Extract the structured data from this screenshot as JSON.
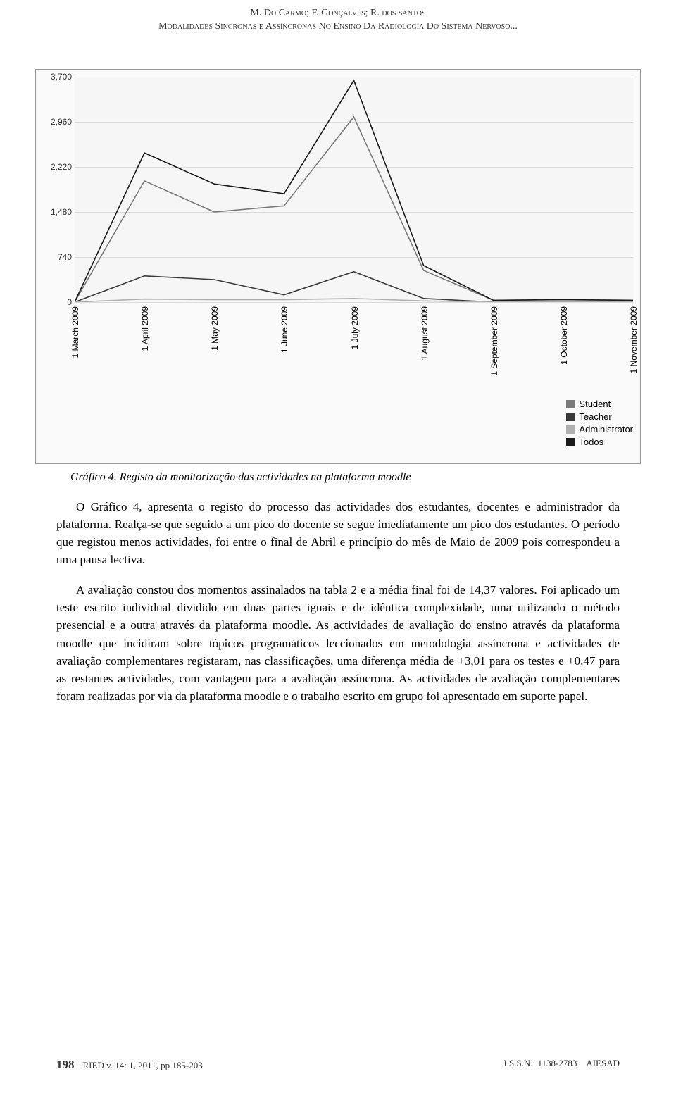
{
  "header": {
    "authors": "M. Do Carmo; F. Gonçalves; R. dos santos",
    "title": "Modalidades Síncronas e Assíncronas No Ensino Da Radiologia Do Sistema Nervoso..."
  },
  "chart": {
    "type": "line",
    "background_color": "#f6f6f6",
    "grid_color": "#dcdcdc",
    "line_width": 1.6,
    "ylim": [
      0,
      3700
    ],
    "yticks": [
      0,
      740,
      1480,
      2220,
      2960,
      3700
    ],
    "x_labels": [
      "1 March 2009",
      "1 April 2009",
      "1 May 2009",
      "1 June 2009",
      "1 July 2009",
      "1 August 2009",
      "1 September 2009",
      "1 October 2009",
      "1 November 2009"
    ],
    "series": [
      {
        "name": "Student",
        "color": "#7a7a7a",
        "values": [
          0,
          1990,
          1480,
          1580,
          3040,
          520,
          30,
          40,
          30
        ]
      },
      {
        "name": "Teacher",
        "color": "#3a3a3a",
        "values": [
          0,
          430,
          370,
          120,
          500,
          60,
          0,
          0,
          0
        ]
      },
      {
        "name": "Administrator",
        "color": "#b0b0b0",
        "values": [
          0,
          50,
          40,
          40,
          60,
          20,
          0,
          0,
          0
        ]
      },
      {
        "name": "Todos",
        "color": "#1a1a1a",
        "values": [
          0,
          2450,
          1940,
          1780,
          3640,
          600,
          30,
          40,
          30
        ]
      }
    ],
    "legend": {
      "items": [
        {
          "label": "Student",
          "color": "#7a7a7a"
        },
        {
          "label": "Teacher",
          "color": "#3a3a3a"
        },
        {
          "label": "Administrator",
          "color": "#b0b0b0"
        },
        {
          "label": "Todos",
          "color": "#1a1a1a"
        }
      ]
    }
  },
  "caption": "Gráfico 4. Registo da monitorização das actividades na plataforma moodle",
  "paragraphs": {
    "p1": "O Gráfico 4, apresenta o registo do processo das actividades dos estudantes, docentes e administrador da plataforma. Realça-se que seguido a um pico do docente se segue imediatamente um pico dos estudantes. O período que registou menos actividades, foi entre o final de Abril e princípio do mês de Maio de 2009 pois correspondeu a uma pausa lectiva.",
    "p2": "A avaliação constou dos momentos assinalados na tabla 2 e a média final foi de 14,37 valores. Foi aplicado um teste escrito individual dividido em duas partes iguais e de idêntica complexidade, uma utilizando o método presencial e a outra através da plataforma moodle. As actividades de avaliação do ensino através da plataforma moodle que incidiram sobre tópicos programáticos leccionados em metodologia assíncrona e actividades de avaliação complementares registaram, nas classificações, uma diferença média de +3,01 para os testes e +0,47 para as restantes actividades, com vantagem para a avaliação assíncrona. As actividades de avaliação complementares foram realizadas por via da plataforma moodle e o trabalho escrito em grupo foi apresentado em suporte papel."
  },
  "footer": {
    "page": "198",
    "left": "RIED v. 14: 1, 2011, pp 185-203",
    "right": "I.S.S.N.: 1138-2783 AIESAD"
  }
}
